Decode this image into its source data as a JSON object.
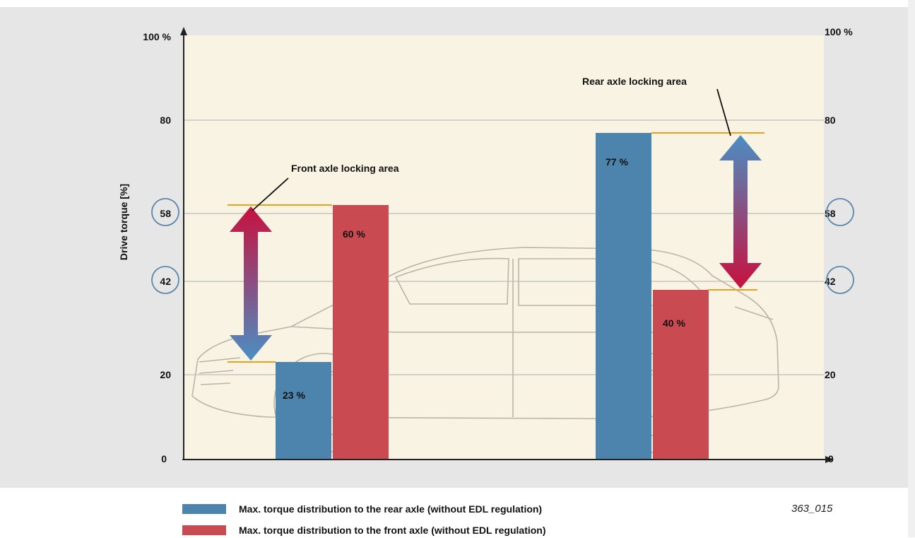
{
  "colors": {
    "rear": "#4c84ad",
    "front": "#c94a50",
    "plot_bg": "#f8f3e2",
    "grid": "#bdbdbd",
    "locking_line": "#e8a21e",
    "highlight_circle": "#5b87ad"
  },
  "chart_data": {
    "type": "bar",
    "ylabel": "Drive torque [%]",
    "ylim": [
      0,
      100
    ],
    "yticks_left": [
      "100 %",
      "80",
      "58",
      "42",
      "20",
      "0"
    ],
    "yticks_right": [
      "100 %",
      "80",
      "58",
      "42",
      "20",
      "0"
    ],
    "ytick_values": [
      100,
      80,
      58,
      42,
      20,
      0
    ],
    "highlighted_ticks": [
      42,
      58
    ],
    "grid": true,
    "legend_position": "bottom",
    "series": [
      {
        "name": "Max. torque distribution to the rear axle (without EDL regulation)",
        "color": "#4c84ad",
        "values": [
          23,
          77
        ],
        "labels": [
          "23 %",
          "77 %"
        ]
      },
      {
        "name": "Max. torque distribution to the front axle (without EDL regulation)",
        "color": "#c94a50",
        "values": [
          60,
          40
        ],
        "labels": [
          "60 %",
          "40 %"
        ]
      }
    ],
    "annotations": [
      {
        "text": "Front axle locking area",
        "from": 23,
        "to": 60
      },
      {
        "text": "Rear axle locking area",
        "from": 40,
        "to": 77
      }
    ]
  },
  "figure_code": "363_015"
}
